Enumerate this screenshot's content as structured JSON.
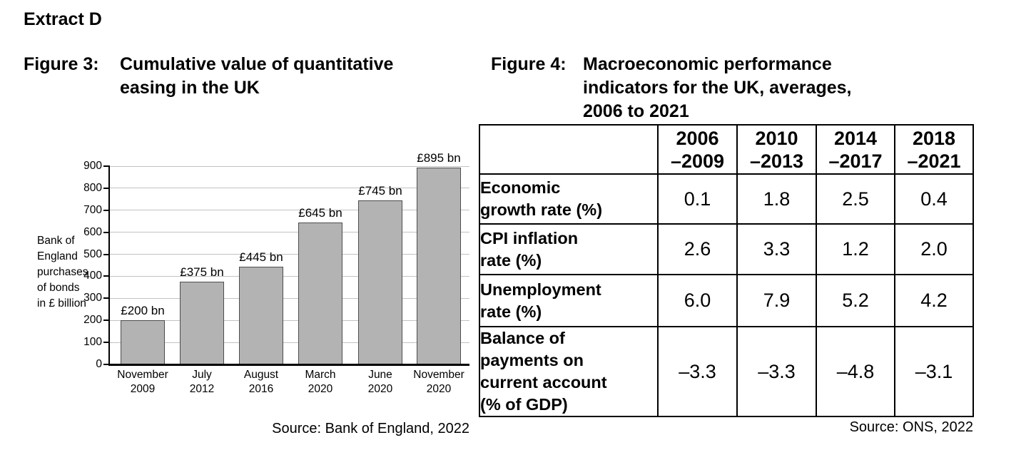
{
  "page": {
    "heading": "Extract D"
  },
  "figure3": {
    "label": "Figure 3:",
    "title": "Cumulative value of quantitative\neasing in the UK",
    "source": "Source: Bank of England, 2022"
  },
  "chart_data": {
    "type": "bar",
    "title": "Cumulative value of quantitative easing in the UK",
    "categories": [
      "November 2009",
      "July 2012",
      "August 2016",
      "March 2020",
      "June 2020",
      "November 2020"
    ],
    "category_lines": [
      [
        "November",
        "2009"
      ],
      [
        "July",
        "2012"
      ],
      [
        "August",
        "2016"
      ],
      [
        "March",
        "2020"
      ],
      [
        "June",
        "2020"
      ],
      [
        "November",
        "2020"
      ]
    ],
    "values": [
      200,
      375,
      445,
      645,
      745,
      895
    ],
    "bar_labels": [
      "£200 bn",
      "£375 bn",
      "£445 bn",
      "£645 bn",
      "£745 bn",
      "£895 bn"
    ],
    "xlabel": "",
    "ylabel": "Bank of England purchases of bonds in £ billion",
    "ylabel_lines": [
      "Bank of",
      "England",
      "purchases",
      "of bonds",
      "in £ billion"
    ],
    "yticks": [
      0,
      100,
      200,
      300,
      400,
      500,
      600,
      700,
      800,
      900
    ],
    "ylim": [
      0,
      900
    ],
    "grid": true,
    "legend": "none",
    "bar_color": "#b3b3b3",
    "bar_border_color": "#4d4d4d",
    "gridline_color": "#c2c2c2",
    "axis_color": "#000000"
  },
  "figure4": {
    "label": "Figure 4:",
    "title": "Macroeconomic performance\nindicators for the UK, averages,\n2006 to 2021",
    "source": "Source: ONS, 2022",
    "table": {
      "col_headers": [
        "2006\n–2009",
        "2010\n–2013",
        "2014\n–2017",
        "2018\n–2021"
      ],
      "rows": [
        {
          "label": "Economic\ngrowth rate (%)",
          "values": [
            "0.1",
            "1.8",
            "2.5",
            "0.4"
          ]
        },
        {
          "label": "CPI inflation\nrate (%)",
          "values": [
            "2.6",
            "3.3",
            "1.2",
            "2.0"
          ]
        },
        {
          "label": "Unemployment\nrate (%)",
          "values": [
            "6.0",
            "7.9",
            "5.2",
            "4.2"
          ]
        },
        {
          "label": "Balance of\npayments on\ncurrent account\n(% of GDP)",
          "values": [
            "–3.3",
            "–3.3",
            "–4.8",
            "–3.1"
          ]
        }
      ]
    }
  }
}
